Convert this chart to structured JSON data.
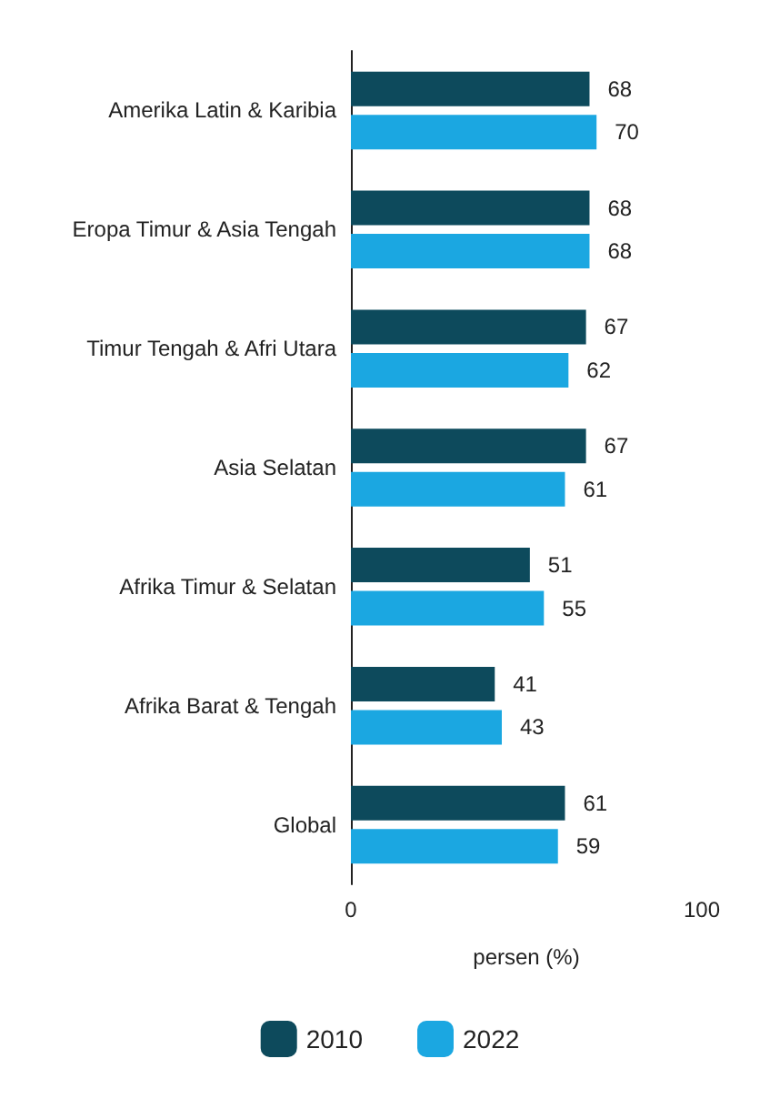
{
  "chart_data": {
    "type": "bar",
    "orientation": "horizontal",
    "xlabel": "persen (%)",
    "categories": [
      "Amerika Latin & Karibia",
      "Eropa Timur & Asia Tengah",
      "Timur Tengah & Afri Utara",
      "Asia Selatan",
      "Afrika Timur & Selatan",
      "Afrika Barat & Tengah",
      "Global"
    ],
    "series": [
      {
        "name": "2010",
        "color": "#0d4a5c",
        "values": [
          68,
          68,
          67,
          67,
          51,
          41,
          61
        ]
      },
      {
        "name": "2022",
        "color": "#1ba7e1",
        "values": [
          70,
          68,
          62,
          61,
          55,
          43,
          59
        ]
      }
    ],
    "xlim": [
      0,
      100
    ],
    "xticks": [
      0,
      100
    ],
    "data_labels": true,
    "legend": "bottom",
    "grid": false
  }
}
